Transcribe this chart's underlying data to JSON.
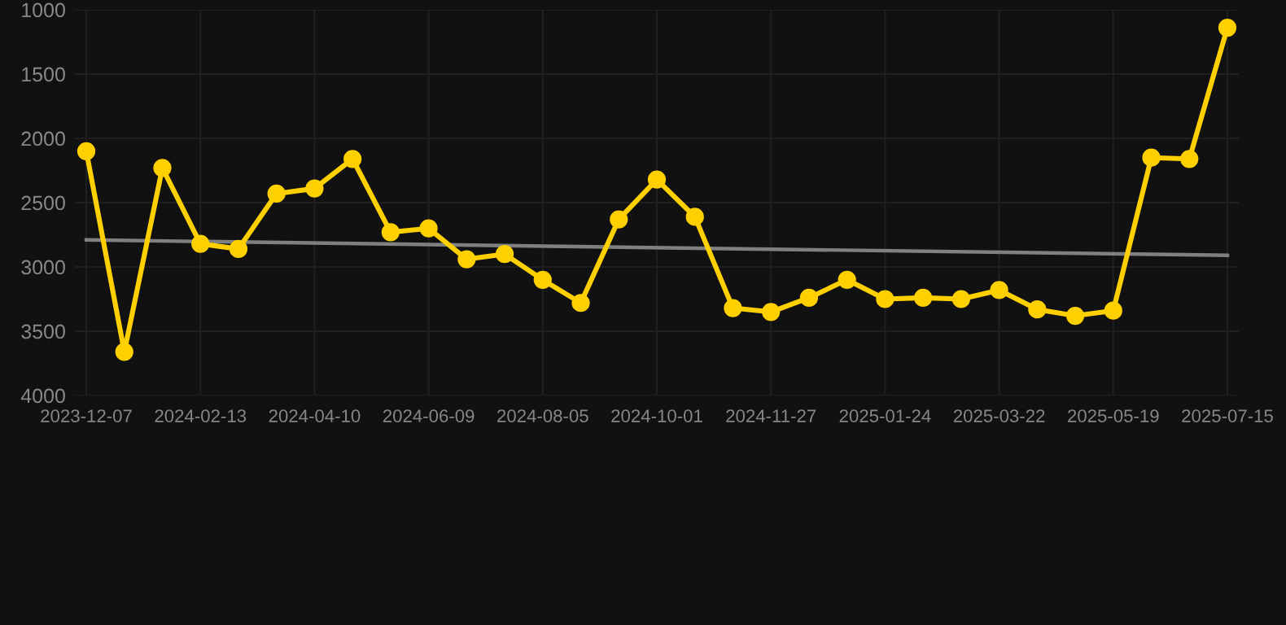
{
  "chart_data": {
    "type": "line",
    "categories": [
      "2023-12-07",
      null,
      null,
      "2024-02-13",
      null,
      null,
      "2024-04-10",
      null,
      null,
      "2024-06-09",
      null,
      null,
      "2024-08-05",
      null,
      null,
      "2024-10-01",
      null,
      null,
      "2024-11-27",
      null,
      null,
      "2025-01-24",
      null,
      null,
      "2025-03-22",
      null,
      null,
      "2025-05-19",
      null,
      null,
      "2025-07-15"
    ],
    "series": [
      {
        "color": "#ffd000",
        "marker": "circle",
        "values": [
          2100,
          3660,
          2230,
          2820,
          2860,
          2430,
          2390,
          2160,
          2730,
          2700,
          2940,
          2900,
          3100,
          3280,
          2630,
          2320,
          2610,
          3320,
          3350,
          3240,
          3100,
          3250,
          3240,
          3250,
          3180,
          3330,
          3380,
          3340,
          2150,
          2160,
          1140
        ]
      },
      {
        "color": "#808080",
        "marker": "none",
        "values": [
          2790,
          null,
          null,
          null,
          null,
          null,
          null,
          null,
          null,
          null,
          null,
          null,
          null,
          null,
          null,
          null,
          null,
          null,
          null,
          null,
          null,
          null,
          null,
          null,
          null,
          null,
          null,
          null,
          null,
          null,
          2910
        ]
      }
    ],
    "ylim": [
      4000,
      1000
    ],
    "yticks": [
      1000,
      1500,
      2000,
      2500,
      3000,
      3500,
      4000
    ],
    "grid": true
  }
}
